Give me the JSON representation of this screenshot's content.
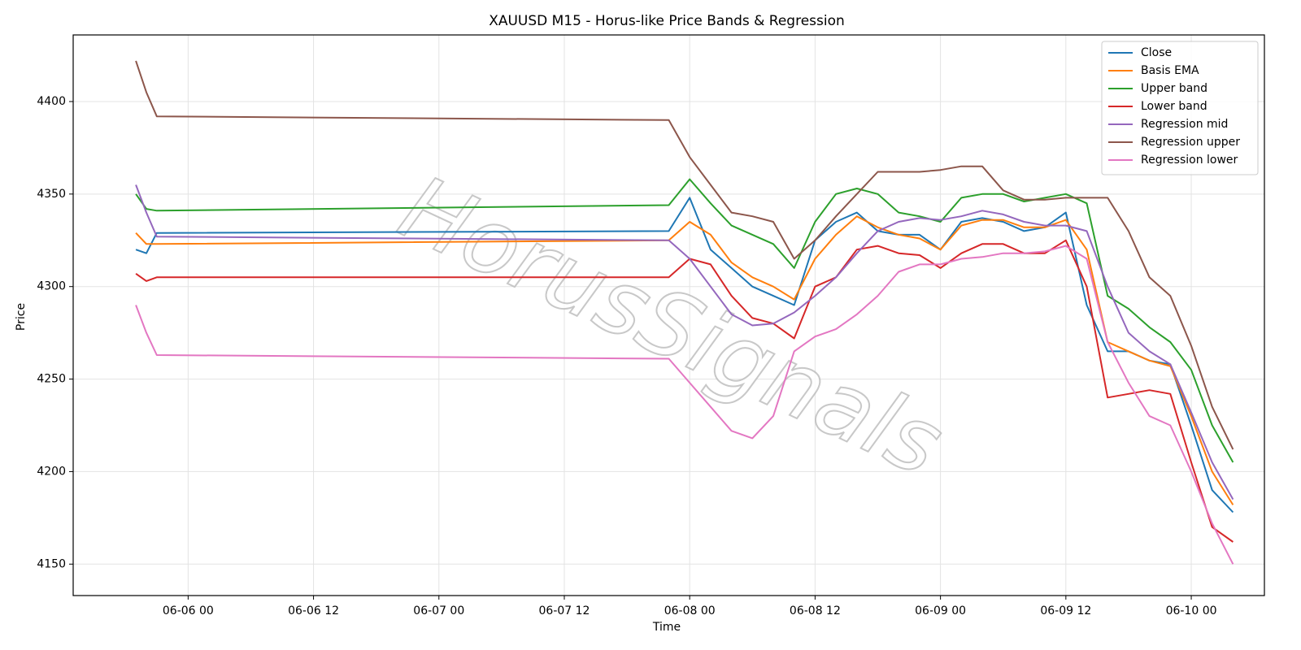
{
  "chart_data": {
    "type": "line",
    "title": "XAUUSD M15 - Horus-like Price Bands & Regression",
    "xlabel": "Time",
    "ylabel": "Price",
    "watermark": "HorusSignals",
    "x": [
      "06-05 19",
      "06-05 20",
      "06-05 21",
      "06-07 22",
      "06-08 00",
      "06-08 02",
      "06-08 04",
      "06-08 06",
      "06-08 08",
      "06-08 10",
      "06-08 12",
      "06-08 14",
      "06-08 16",
      "06-08 18",
      "06-08 20",
      "06-08 22",
      "06-09 00",
      "06-09 02",
      "06-09 04",
      "06-09 06",
      "06-09 08",
      "06-09 10",
      "06-09 12",
      "06-09 14",
      "06-09 16",
      "06-09 18",
      "06-09 20",
      "06-09 22",
      "06-10 00",
      "06-10 02",
      "06-10 04"
    ],
    "series": [
      {
        "name": "Close",
        "color": "#1f77b4",
        "values": [
          4320,
          4318,
          4329,
          4330,
          4348,
          4320,
          4310,
          4300,
          4295,
          4290,
          4325,
          4335,
          4340,
          4330,
          4328,
          4328,
          4320,
          4335,
          4337,
          4335,
          4330,
          4332,
          4340,
          4290,
          4265,
          4265,
          4260,
          4258,
          4225,
          4190,
          4178
        ]
      },
      {
        "name": "Basis EMA",
        "color": "#ff7f0e",
        "values": [
          4329,
          4323,
          4323,
          4325,
          4335,
          4328,
          4313,
          4305,
          4300,
          4293,
          4315,
          4328,
          4338,
          4332,
          4328,
          4326,
          4320,
          4333,
          4336,
          4336,
          4332,
          4332,
          4336,
          4320,
          4270,
          4265,
          4260,
          4257,
          4230,
          4200,
          4182
        ]
      },
      {
        "name": "Upper band",
        "color": "#2ca02c",
        "values": [
          4350,
          4342,
          4341,
          4344,
          4358,
          4345,
          4333,
          4328,
          4323,
          4310,
          4335,
          4350,
          4353,
          4350,
          4340,
          4338,
          4335,
          4348,
          4350,
          4350,
          4346,
          4348,
          4350,
          4345,
          4295,
          4288,
          4278,
          4270,
          4255,
          4225,
          4205
        ]
      },
      {
        "name": "Lower band",
        "color": "#d62728",
        "values": [
          4307,
          4303,
          4305,
          4305,
          4315,
          4312,
          4295,
          4283,
          4280,
          4272,
          4300,
          4305,
          4320,
          4322,
          4318,
          4317,
          4310,
          4318,
          4323,
          4323,
          4318,
          4318,
          4325,
          4300,
          4240,
          4242,
          4244,
          4242,
          4205,
          4170,
          4162
        ]
      },
      {
        "name": "Regression mid",
        "color": "#9467bd",
        "values": [
          4355,
          4340,
          4327,
          4325,
          4315,
          4300,
          4285,
          4279,
          4280,
          4286,
          4295,
          4305,
          4318,
          4330,
          4335,
          4337,
          4336,
          4338,
          4341,
          4339,
          4335,
          4333,
          4333,
          4330,
          4300,
          4275,
          4265,
          4258,
          4232,
          4205,
          4185
        ]
      },
      {
        "name": "Regression upper",
        "color": "#8c564b",
        "values": [
          4422,
          4405,
          4392,
          4390,
          4370,
          4355,
          4340,
          4338,
          4335,
          4315,
          4325,
          4338,
          4350,
          4362,
          4362,
          4362,
          4363,
          4365,
          4365,
          4352,
          4347,
          4347,
          4348,
          4348,
          4348,
          4330,
          4305,
          4295,
          4268,
          4235,
          4212
        ]
      },
      {
        "name": "Regression lower",
        "color": "#e377c2",
        "values": [
          4290,
          4275,
          4263,
          4261,
          4248,
          4235,
          4222,
          4218,
          4230,
          4265,
          4273,
          4277,
          4285,
          4295,
          4308,
          4312,
          4312,
          4315,
          4316,
          4318,
          4318,
          4319,
          4322,
          4315,
          4270,
          4248,
          4230,
          4225,
          4200,
          4172,
          4150
        ]
      }
    ],
    "xlim": [
      "06-05 13",
      "06-10 07"
    ],
    "xticks": [
      "06-06 00",
      "06-06 12",
      "06-07 00",
      "06-07 12",
      "06-08 00",
      "06-08 12",
      "06-09 00",
      "06-09 12",
      "06-10 00"
    ],
    "ylim": [
      4133,
      4436
    ],
    "yticks": [
      4150,
      4200,
      4250,
      4300,
      4350,
      4400
    ],
    "grid": true,
    "legend": "upper right"
  }
}
